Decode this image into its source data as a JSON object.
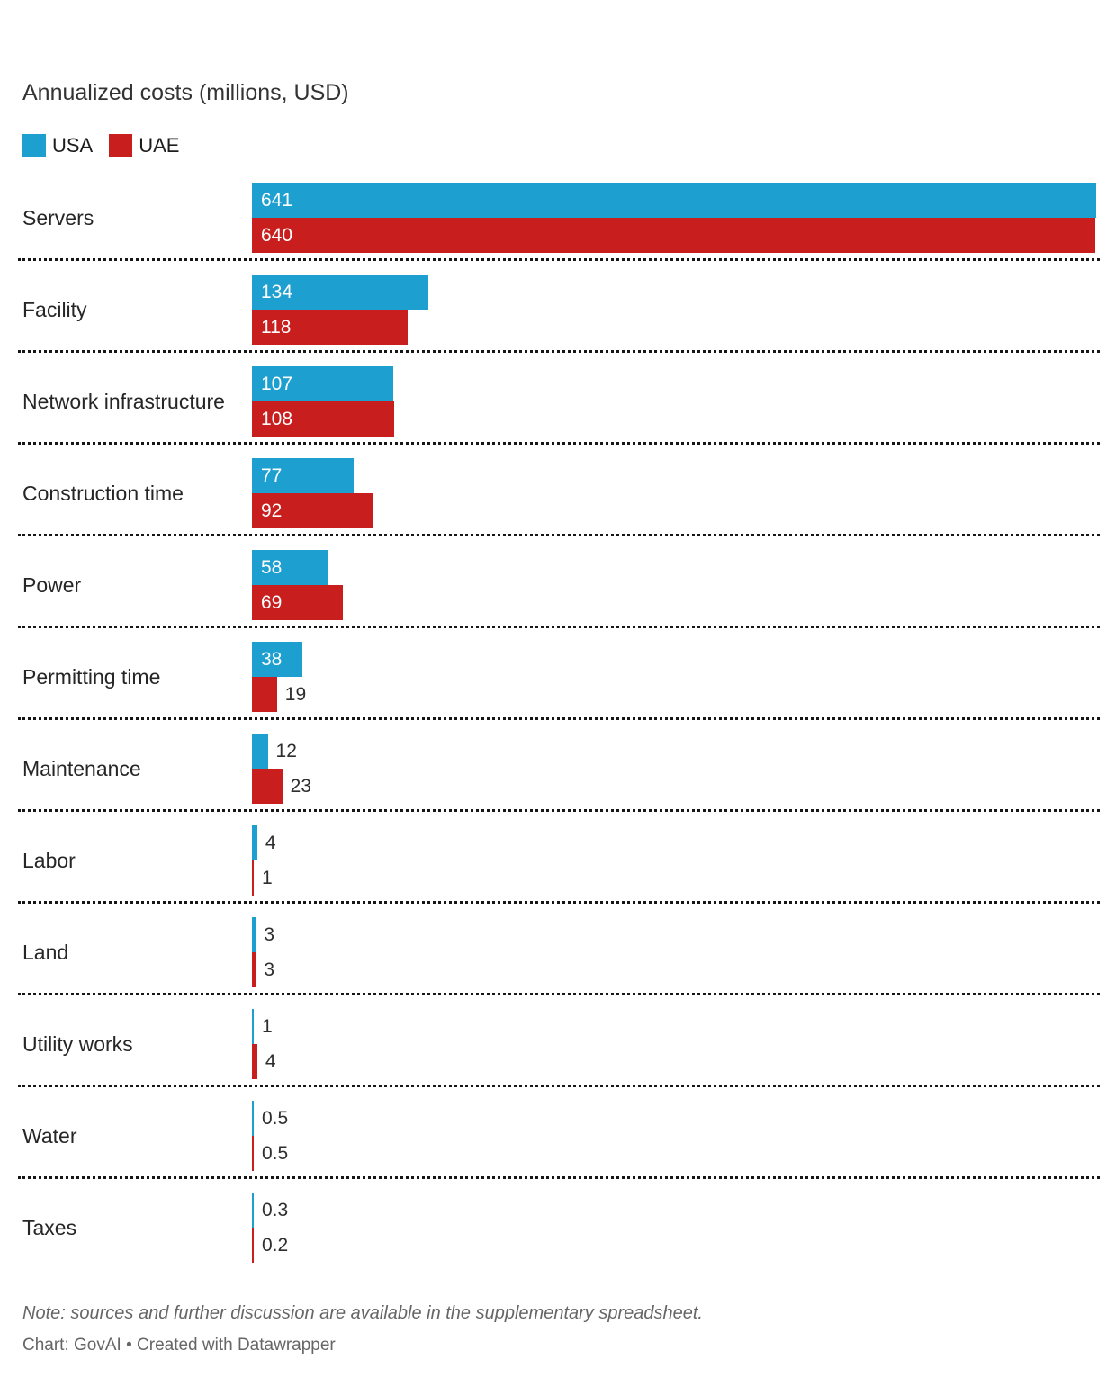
{
  "header": {
    "title": "Annualized costs (millions, USD)"
  },
  "legend": {
    "items": [
      {
        "label": "USA",
        "color": "#1d9fd0"
      },
      {
        "label": "UAE",
        "color": "#c81e1e"
      }
    ]
  },
  "chart_data": {
    "type": "bar",
    "orientation": "horizontal",
    "grouped": true,
    "title": "Annualized costs (millions, USD)",
    "categories": [
      "Servers",
      "Facility",
      "Network infrastructure",
      "Construction time",
      "Power",
      "Permitting time",
      "Maintenance",
      "Labor",
      "Land",
      "Utility works",
      "Water",
      "Taxes"
    ],
    "series": [
      {
        "name": "USA",
        "color": "#1d9fd0",
        "values": [
          641,
          134,
          107,
          77,
          58,
          38,
          12,
          4,
          3,
          1,
          0.5,
          0.3
        ]
      },
      {
        "name": "UAE",
        "color": "#c81e1e",
        "values": [
          640,
          118,
          108,
          92,
          69,
          19,
          23,
          1,
          3,
          4,
          0.5,
          0.2
        ]
      }
    ],
    "xlim": [
      0,
      641
    ],
    "grid": false,
    "legend_position": "top-left",
    "value_labels": true,
    "row_separator": "dotted"
  },
  "footer": {
    "note": "Note: sources and further discussion are available in the supplementary spreadsheet.",
    "credit": "Chart: GovAI • Created with Datawrapper"
  },
  "colors": {
    "value_inside": "#ffffff",
    "value_outside": "#2e2e2e",
    "category_label": "#262626",
    "separator": "#161616",
    "title": "#333333",
    "footer": "#666666"
  }
}
